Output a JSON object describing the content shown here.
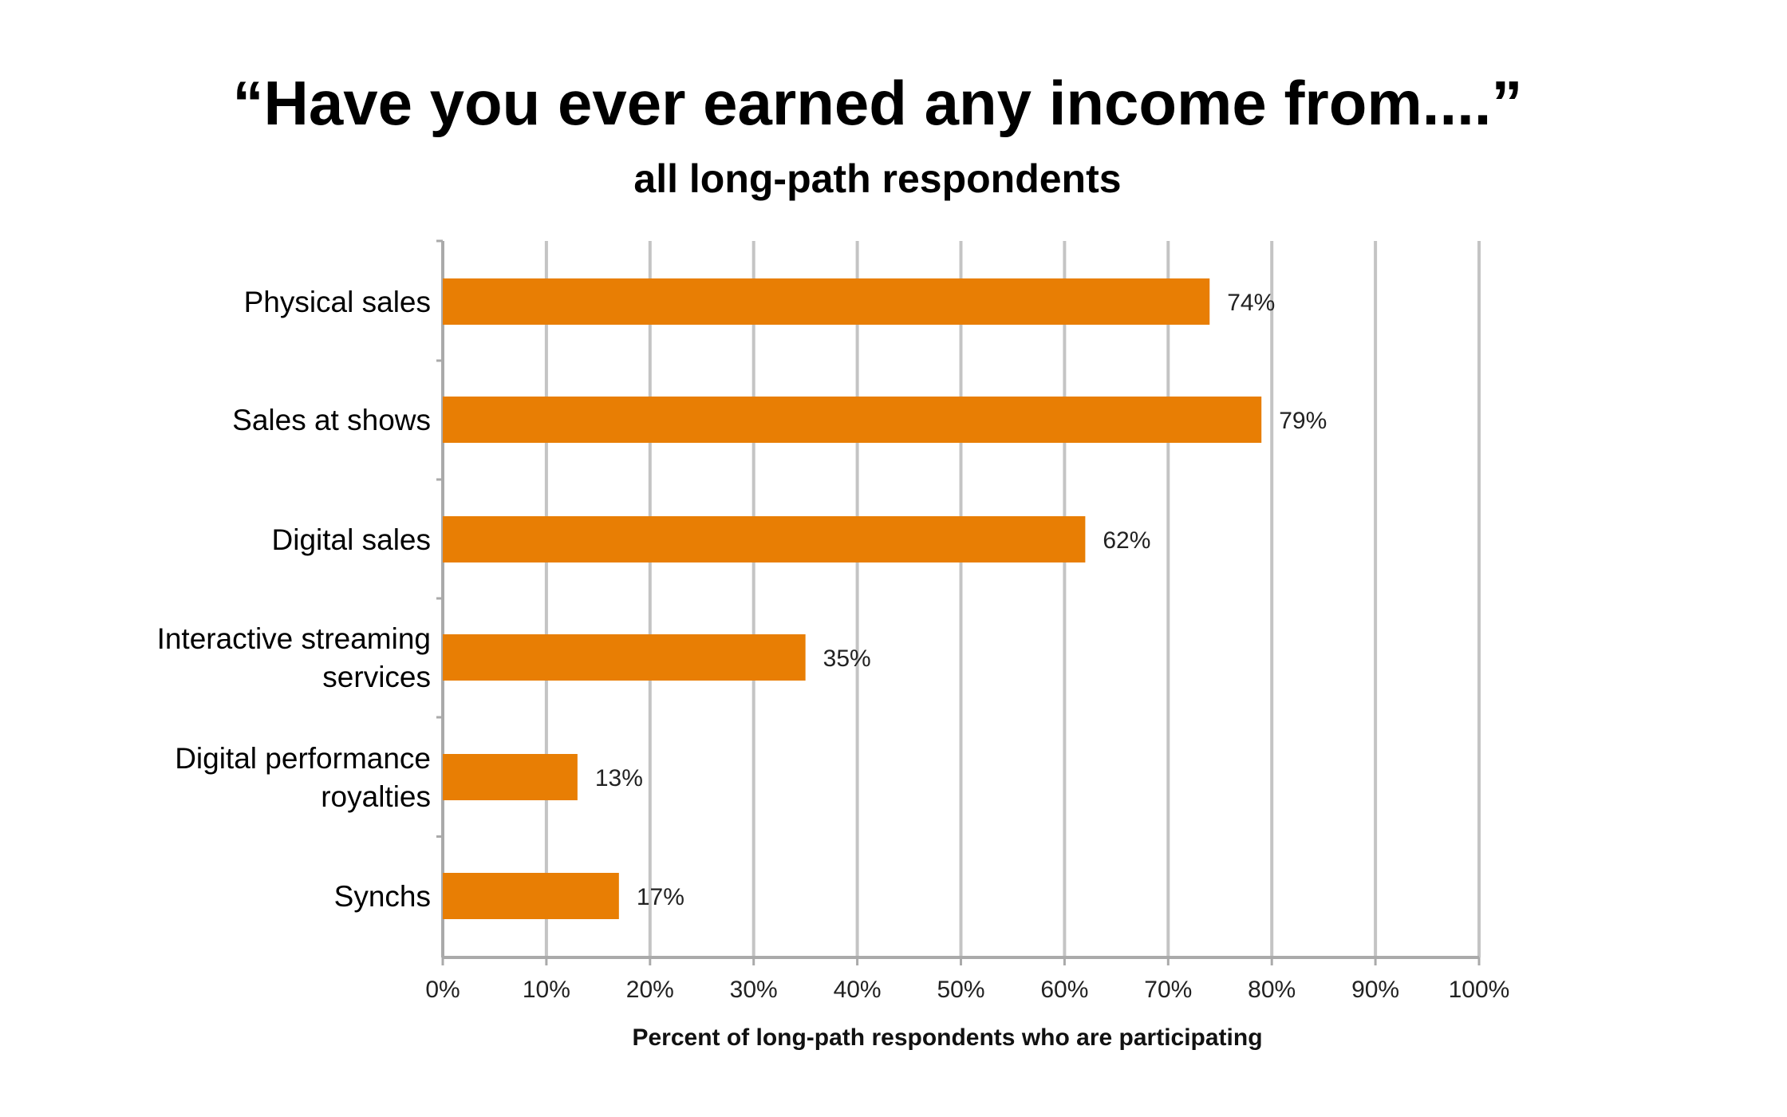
{
  "chart_data": {
    "type": "bar",
    "orientation": "horizontal",
    "title": "“Have you ever earned any income from....”",
    "subtitle": "all long-path respondents",
    "categories": [
      "Physical sales",
      "Sales at shows",
      "Digital sales",
      "Interactive streaming services",
      "Digital performance royalties",
      "Synchs"
    ],
    "values": [
      74,
      79,
      62,
      35,
      13,
      17
    ],
    "data_labels": [
      "74%",
      "79%",
      "62%",
      "35%",
      "13%",
      "17%"
    ],
    "xlabel": "Percent of long-path respondents who are participating",
    "ylabel": "",
    "xlim": [
      0,
      100
    ],
    "x_ticks": [
      0,
      10,
      20,
      30,
      40,
      50,
      60,
      70,
      80,
      90,
      100
    ],
    "x_tick_labels": [
      "0%",
      "10%",
      "20%",
      "30%",
      "40%",
      "50%",
      "60%",
      "70%",
      "80%",
      "90%",
      "100%"
    ],
    "grid": true,
    "legend": "none",
    "bar_color": "#E87E04",
    "grid_color": "#C4C4C4"
  }
}
